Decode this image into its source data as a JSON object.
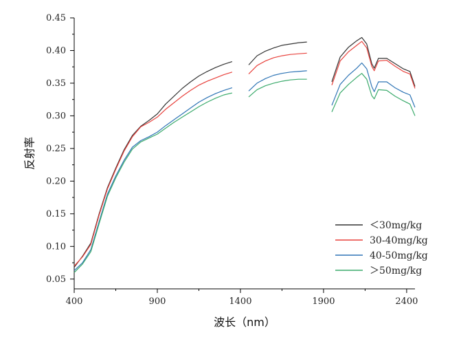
{
  "chart_data": {
    "type": "line",
    "title": "",
    "xlabel": "波长（nm）",
    "ylabel": "反射率",
    "xlim": [
      400,
      2450
    ],
    "ylim": [
      0.035,
      0.45
    ],
    "x_ticks": [
      400,
      900,
      1400,
      1900,
      2400
    ],
    "y_ticks": [
      0.05,
      0.1,
      0.15,
      0.2,
      0.25,
      0.3,
      0.35,
      0.4,
      0.45
    ],
    "y_tick_labels": [
      "0.05",
      "0.10",
      "0.15",
      "0.20",
      "0.25",
      "0.30",
      "0.35",
      "0.40",
      "0.45"
    ],
    "grid": false,
    "legend_position": "bottom-right",
    "series": [
      {
        "name": "＜30mg/kg",
        "color": "#333333",
        "segments": [
          [
            [
              400,
              0.068
            ],
            [
              450,
              0.085
            ],
            [
              500,
              0.105
            ],
            [
              550,
              0.15
            ],
            [
              600,
              0.19
            ],
            [
              650,
              0.22
            ],
            [
              700,
              0.248
            ],
            [
              750,
              0.27
            ],
            [
              800,
              0.284
            ],
            [
              850,
              0.293
            ],
            [
              900,
              0.303
            ],
            [
              950,
              0.318
            ],
            [
              1000,
              0.33
            ],
            [
              1050,
              0.342
            ],
            [
              1100,
              0.352
            ],
            [
              1150,
              0.361
            ],
            [
              1200,
              0.368
            ],
            [
              1250,
              0.374
            ],
            [
              1300,
              0.379
            ],
            [
              1350,
              0.383
            ]
          ],
          [
            [
              1450,
              0.378
            ],
            [
              1500,
              0.392
            ],
            [
              1550,
              0.399
            ],
            [
              1600,
              0.404
            ],
            [
              1650,
              0.408
            ],
            [
              1700,
              0.41
            ],
            [
              1750,
              0.412
            ],
            [
              1800,
              0.413
            ]
          ],
          [
            [
              1950,
              0.352
            ],
            [
              2000,
              0.39
            ],
            [
              2050,
              0.405
            ],
            [
              2100,
              0.415
            ],
            [
              2130,
              0.42
            ],
            [
              2160,
              0.41
            ],
            [
              2190,
              0.38
            ],
            [
              2205,
              0.373
            ],
            [
              2230,
              0.388
            ],
            [
              2280,
              0.388
            ],
            [
              2330,
              0.38
            ],
            [
              2380,
              0.372
            ],
            [
              2420,
              0.368
            ],
            [
              2450,
              0.345
            ]
          ]
        ]
      },
      {
        "name": "30-40mg/kg",
        "color": "#e8413c",
        "segments": [
          [
            [
              400,
              0.07
            ],
            [
              450,
              0.084
            ],
            [
              500,
              0.103
            ],
            [
              550,
              0.148
            ],
            [
              600,
              0.188
            ],
            [
              650,
              0.218
            ],
            [
              700,
              0.246
            ],
            [
              750,
              0.268
            ],
            [
              800,
              0.283
            ],
            [
              850,
              0.29
            ],
            [
              900,
              0.298
            ],
            [
              950,
              0.31
            ],
            [
              1000,
              0.32
            ],
            [
              1050,
              0.33
            ],
            [
              1100,
              0.339
            ],
            [
              1150,
              0.347
            ],
            [
              1200,
              0.353
            ],
            [
              1250,
              0.358
            ],
            [
              1300,
              0.363
            ],
            [
              1350,
              0.367
            ]
          ],
          [
            [
              1450,
              0.364
            ],
            [
              1500,
              0.377
            ],
            [
              1550,
              0.384
            ],
            [
              1600,
              0.389
            ],
            [
              1650,
              0.392
            ],
            [
              1700,
              0.394
            ],
            [
              1750,
              0.395
            ],
            [
              1800,
              0.396
            ]
          ],
          [
            [
              1950,
              0.347
            ],
            [
              2000,
              0.384
            ],
            [
              2050,
              0.398
            ],
            [
              2100,
              0.408
            ],
            [
              2130,
              0.414
            ],
            [
              2160,
              0.404
            ],
            [
              2190,
              0.376
            ],
            [
              2205,
              0.369
            ],
            [
              2230,
              0.384
            ],
            [
              2280,
              0.385
            ],
            [
              2330,
              0.376
            ],
            [
              2380,
              0.368
            ],
            [
              2420,
              0.364
            ],
            [
              2450,
              0.342
            ]
          ]
        ]
      },
      {
        "name": "40-50mg/kg",
        "color": "#2e74b5",
        "segments": [
          [
            [
              400,
              0.063
            ],
            [
              450,
              0.075
            ],
            [
              500,
              0.095
            ],
            [
              550,
              0.138
            ],
            [
              600,
              0.18
            ],
            [
              650,
              0.208
            ],
            [
              700,
              0.232
            ],
            [
              750,
              0.252
            ],
            [
              800,
              0.262
            ],
            [
              850,
              0.268
            ],
            [
              900,
              0.275
            ],
            [
              950,
              0.285
            ],
            [
              1000,
              0.294
            ],
            [
              1050,
              0.303
            ],
            [
              1100,
              0.312
            ],
            [
              1150,
              0.321
            ],
            [
              1200,
              0.328
            ],
            [
              1250,
              0.334
            ],
            [
              1300,
              0.339
            ],
            [
              1350,
              0.343
            ]
          ],
          [
            [
              1450,
              0.338
            ],
            [
              1500,
              0.35
            ],
            [
              1550,
              0.357
            ],
            [
              1600,
              0.362
            ],
            [
              1650,
              0.365
            ],
            [
              1700,
              0.367
            ],
            [
              1750,
              0.368
            ],
            [
              1800,
              0.369
            ]
          ],
          [
            [
              1950,
              0.316
            ],
            [
              2000,
              0.348
            ],
            [
              2050,
              0.362
            ],
            [
              2100,
              0.373
            ],
            [
              2130,
              0.381
            ],
            [
              2160,
              0.372
            ],
            [
              2190,
              0.345
            ],
            [
              2205,
              0.337
            ],
            [
              2230,
              0.352
            ],
            [
              2280,
              0.352
            ],
            [
              2330,
              0.343
            ],
            [
              2380,
              0.336
            ],
            [
              2420,
              0.332
            ],
            [
              2450,
              0.313
            ]
          ]
        ]
      },
      {
        "name": "＞50mg/kg",
        "color": "#3aaa6b",
        "segments": [
          [
            [
              400,
              0.06
            ],
            [
              450,
              0.073
            ],
            [
              500,
              0.092
            ],
            [
              550,
              0.135
            ],
            [
              600,
              0.177
            ],
            [
              650,
              0.205
            ],
            [
              700,
              0.229
            ],
            [
              750,
              0.249
            ],
            [
              800,
              0.26
            ],
            [
              850,
              0.266
            ],
            [
              900,
              0.272
            ],
            [
              950,
              0.281
            ],
            [
              1000,
              0.29
            ],
            [
              1050,
              0.298
            ],
            [
              1100,
              0.306
            ],
            [
              1150,
              0.314
            ],
            [
              1200,
              0.321
            ],
            [
              1250,
              0.327
            ],
            [
              1300,
              0.332
            ],
            [
              1350,
              0.335
            ]
          ],
          [
            [
              1450,
              0.329
            ],
            [
              1500,
              0.34
            ],
            [
              1550,
              0.346
            ],
            [
              1600,
              0.35
            ],
            [
              1650,
              0.353
            ],
            [
              1700,
              0.355
            ],
            [
              1750,
              0.356
            ],
            [
              1800,
              0.356
            ]
          ],
          [
            [
              1950,
              0.306
            ],
            [
              2000,
              0.335
            ],
            [
              2050,
              0.348
            ],
            [
              2100,
              0.359
            ],
            [
              2130,
              0.365
            ],
            [
              2160,
              0.356
            ],
            [
              2190,
              0.331
            ],
            [
              2205,
              0.326
            ],
            [
              2230,
              0.34
            ],
            [
              2280,
              0.339
            ],
            [
              2330,
              0.33
            ],
            [
              2380,
              0.323
            ],
            [
              2420,
              0.318
            ],
            [
              2450,
              0.3
            ]
          ]
        ]
      }
    ]
  }
}
